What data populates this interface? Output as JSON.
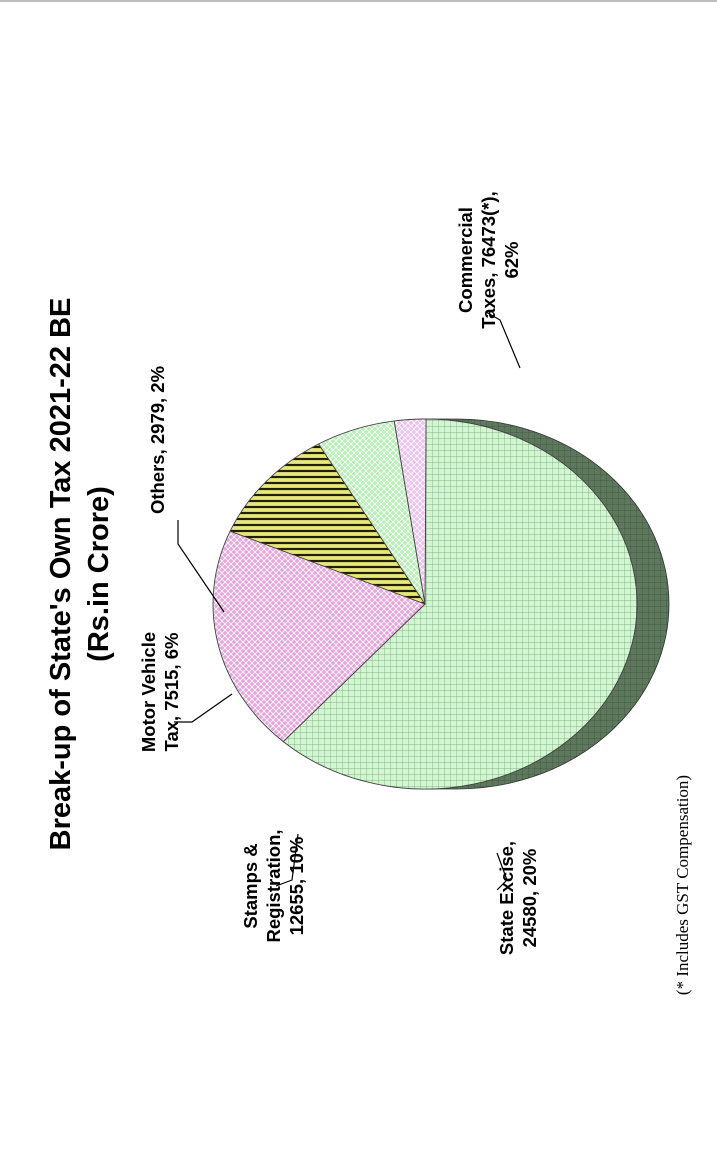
{
  "chart_data": {
    "type": "pie",
    "title": "Break-up of State's Own Tax 2021-22 BE",
    "subtitle": "(Rs.in Crore)",
    "slices": [
      {
        "name": "Commercial Taxes",
        "value": 76473,
        "percent": 62,
        "label_lines": [
          "Commercial",
          "Taxes, 76473(*),",
          "62%"
        ],
        "color": "#c8f0c8",
        "side_color": "#5a725a",
        "pattern": "grid"
      },
      {
        "name": "State Excise",
        "value": 24580,
        "percent": 20,
        "label_lines": [
          "State Excise,",
          "24580, 20%"
        ],
        "color": "#e2a0d6",
        "side_color": "#9a6a92",
        "pattern": "diamond"
      },
      {
        "name": "Stamps & Registration",
        "value": 12655,
        "percent": 10,
        "label_lines": [
          "Stamps &",
          "Registration,",
          "12655, 10%"
        ],
        "color": "#e8e87a",
        "side_color": "#606020",
        "pattern": "stripe"
      },
      {
        "name": "Motor Vehicle Tax",
        "value": 7515,
        "percent": 6,
        "label_lines": [
          "Motor Vehicle",
          "Tax, 7515, 6%"
        ],
        "color": "#b8f0b8",
        "side_color": "#6a9a6a",
        "pattern": "diamond"
      },
      {
        "name": "Others",
        "value": 2979,
        "percent": 2,
        "label_lines": [
          "Others, 2979, 2%"
        ],
        "color": "#e8b8ea",
        "side_color": "#9a7a9a",
        "pattern": "diamond"
      }
    ],
    "footnote": "(* Includes GST Compensation)",
    "rotation": "counter-clockwise 90°",
    "style": "3d-pie"
  }
}
